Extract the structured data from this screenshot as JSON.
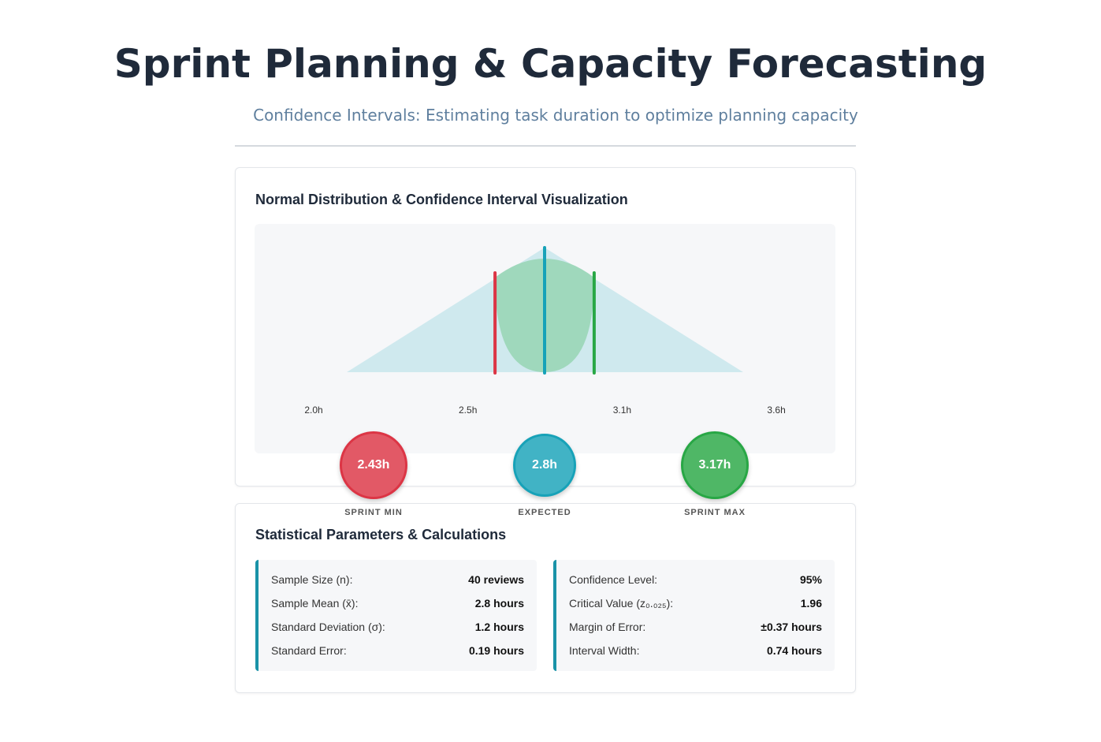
{
  "header": {
    "title": "Sprint Planning & Capacity Forecasting",
    "subtitle": "Confidence Intervals: Estimating task duration to optimize planning capacity"
  },
  "visualization": {
    "title": "Normal Distribution & Confidence Interval Visualization",
    "axis_labels": [
      "2.0h",
      "2.5h",
      "3.1h",
      "3.6h"
    ],
    "markers": [
      {
        "label": "SPRINT MIN",
        "value": 2.43,
        "value_label": "2.43h",
        "color": "#dc3545"
      },
      {
        "label": "EXPECTED",
        "value": 2.8,
        "value_label": "2.8h",
        "color": "#17a2b8"
      },
      {
        "label": "SPRINT MAX",
        "value": 3.17,
        "value_label": "3.17h",
        "color": "#28a745"
      }
    ]
  },
  "stats": {
    "title": "Statistical Parameters & Calculations",
    "panels": [
      [
        [
          "Sample Size (n):",
          "40 reviews"
        ],
        [
          "Sample Mean (x̄):",
          "2.8 hours"
        ],
        [
          "Standard Deviation (σ):",
          "1.2 hours"
        ],
        [
          "Standard Error:",
          "0.19 hours"
        ]
      ],
      [
        [
          "Confidence Level:",
          "95%"
        ],
        [
          "Critical Value (z₀.₀₂₅):",
          "1.96"
        ],
        [
          "Margin of Error:",
          "±0.37 hours"
        ],
        [
          "Interval Width:",
          "0.74 hours"
        ]
      ]
    ]
  }
}
